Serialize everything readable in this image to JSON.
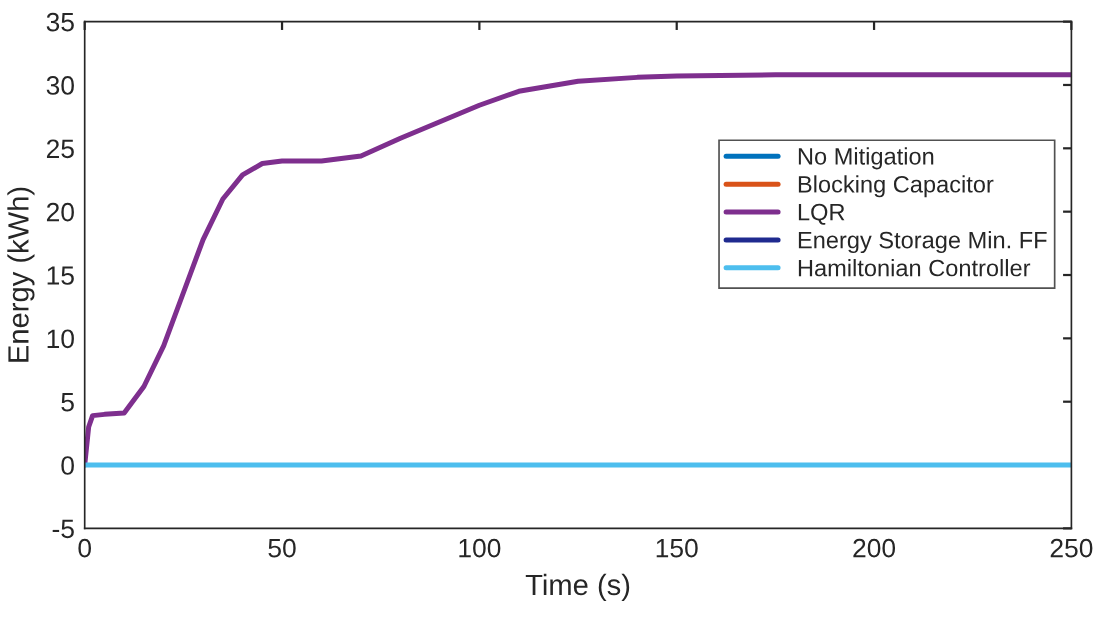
{
  "chart_data": {
    "type": "line",
    "xlabel": "Time (s)",
    "ylabel": "Energy (kWh)",
    "xlim": [
      0,
      250
    ],
    "xticks": [
      0,
      50,
      100,
      150,
      200,
      250
    ],
    "ylim": [
      -5,
      35
    ],
    "yticks": [
      -5,
      0,
      5,
      10,
      15,
      20,
      25,
      30,
      35
    ],
    "grid": false,
    "legend": "right",
    "line_style": "solid",
    "marker": "none",
    "series": [
      {
        "name": "No Mitigation",
        "color": "#0072bd"
      },
      {
        "name": "Blocking Capacitor",
        "color": "#d95319"
      },
      {
        "name": "LQR",
        "color": "#7e2f8e",
        "x": [
          0,
          1,
          2,
          5,
          10,
          15,
          20,
          25,
          30,
          35,
          40,
          45,
          50,
          60,
          70,
          80,
          90,
          100,
          110,
          125,
          140,
          150,
          175,
          200,
          250
        ],
        "values": [
          0,
          3.0,
          3.9,
          4.0,
          4.1,
          6.2,
          9.4,
          13.6,
          17.8,
          21.0,
          22.9,
          23.8,
          24.0,
          24.0,
          24.4,
          25.8,
          27.1,
          28.4,
          29.5,
          30.3,
          30.6,
          30.7,
          30.8,
          30.8,
          30.8
        ]
      },
      {
        "name": "Energy Storage Min. FF",
        "color": "#1f2a8f"
      },
      {
        "name": "Hamiltonian Controller",
        "color": "#4dbeee",
        "x": [
          0,
          250
        ],
        "values": [
          0,
          0
        ]
      }
    ]
  }
}
